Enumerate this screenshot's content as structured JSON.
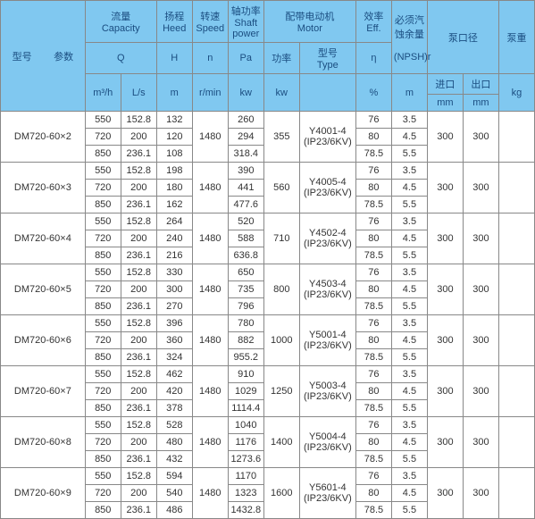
{
  "colors": {
    "header_bg": "#80c8f0",
    "header_text": "#1a4d80",
    "border": "#888888",
    "cell_bg": "#ffffff"
  },
  "header": {
    "model_params": "型号        参数",
    "capacity_cn": "流量",
    "capacity_en": "Capacity",
    "head_cn": "扬程",
    "head_en": "Heed",
    "speed_cn": "转速",
    "speed_en": "Speed",
    "shaft_cn": "轴功率",
    "shaft_en": "Shaft power",
    "motor_cn": "配带电动机",
    "motor_en": "Motor",
    "eff_cn": "效率",
    "eff_en": "Eff.",
    "npsh_cn": "必须汽蚀余量",
    "pump_dia_cn": "泵口径",
    "weight_cn": "泵重",
    "Q": "Q",
    "H": "H",
    "n": "n",
    "Pa": "Pa",
    "power_cn": "功率",
    "type_cn": "型号",
    "type_en": "Type",
    "eta": "η",
    "npshr": "(NPSH)r",
    "inlet": "进口",
    "outlet": "出口",
    "u_m3h": "m³/h",
    "u_ls": "L/s",
    "u_m": "m",
    "u_rmin": "r/min",
    "u_kw": "kw",
    "u_kw2": "kw",
    "u_pct": "%",
    "u_m2": "m",
    "u_mm": "mm",
    "u_mm2": "mm",
    "u_kg": "kg"
  },
  "rows": [
    {
      "model": "DM720-60×2",
      "q_m3h": [
        550,
        720,
        850
      ],
      "q_ls": [
        152.8,
        200,
        236.1
      ],
      "head": [
        132,
        120,
        108
      ],
      "speed": 1480,
      "shaft": [
        260,
        294,
        318.4
      ],
      "motor_kw": 355,
      "motor_type": "Y4001-4\n(IP23/6KV)",
      "eff": [
        76,
        80,
        78.5
      ],
      "npsh": [
        3.5,
        4.5,
        5.5
      ],
      "inlet": 300,
      "outlet": 300,
      "weight": ""
    },
    {
      "model": "DM720-60×3",
      "q_m3h": [
        550,
        720,
        850
      ],
      "q_ls": [
        152.8,
        200,
        236.1
      ],
      "head": [
        198,
        180,
        162
      ],
      "speed": 1480,
      "shaft": [
        390,
        441,
        477.6
      ],
      "motor_kw": 560,
      "motor_type": "Y4005-4\n(IP23/6KV)",
      "eff": [
        76,
        80,
        78.5
      ],
      "npsh": [
        3.5,
        4.5,
        5.5
      ],
      "inlet": 300,
      "outlet": 300,
      "weight": ""
    },
    {
      "model": "DM720-60×4",
      "q_m3h": [
        550,
        720,
        850
      ],
      "q_ls": [
        152.8,
        200,
        236.1
      ],
      "head": [
        264,
        240,
        216
      ],
      "speed": 1480,
      "shaft": [
        520,
        588,
        636.8
      ],
      "motor_kw": 710,
      "motor_type": "Y4502-4\n(IP23/6KV)",
      "eff": [
        76,
        80,
        78.5
      ],
      "npsh": [
        3.5,
        4.5,
        5.5
      ],
      "inlet": 300,
      "outlet": 300,
      "weight": ""
    },
    {
      "model": "DM720-60×5",
      "q_m3h": [
        550,
        720,
        850
      ],
      "q_ls": [
        152.8,
        200,
        236.1
      ],
      "head": [
        330,
        300,
        270
      ],
      "speed": 1480,
      "shaft": [
        650,
        735,
        796
      ],
      "motor_kw": 800,
      "motor_type": "Y4503-4\n(IP23/6KV)",
      "eff": [
        76,
        80,
        78.5
      ],
      "npsh": [
        3.5,
        4.5,
        5.5
      ],
      "inlet": 300,
      "outlet": 300,
      "weight": ""
    },
    {
      "model": "DM720-60×6",
      "q_m3h": [
        550,
        720,
        850
      ],
      "q_ls": [
        152.8,
        200,
        236.1
      ],
      "head": [
        396,
        360,
        324
      ],
      "speed": 1480,
      "shaft": [
        780,
        882,
        955.2
      ],
      "motor_kw": 1000,
      "motor_type": "Y5001-4\n(IP23/6KV)",
      "eff": [
        76,
        80,
        78.5
      ],
      "npsh": [
        3.5,
        4.5,
        5.5
      ],
      "inlet": 300,
      "outlet": 300,
      "weight": ""
    },
    {
      "model": "DM720-60×7",
      "q_m3h": [
        550,
        720,
        850
      ],
      "q_ls": [
        152.8,
        200,
        236.1
      ],
      "head": [
        462,
        420,
        378
      ],
      "speed": 1480,
      "shaft": [
        910,
        1029,
        1114.4
      ],
      "motor_kw": 1250,
      "motor_type": "Y5003-4\n(IP23/6KV)",
      "eff": [
        76,
        80,
        78.5
      ],
      "npsh": [
        3.5,
        4.5,
        5.5
      ],
      "inlet": 300,
      "outlet": 300,
      "weight": ""
    },
    {
      "model": "DM720-60×8",
      "q_m3h": [
        550,
        720,
        850
      ],
      "q_ls": [
        152.8,
        200,
        236.1
      ],
      "head": [
        528,
        480,
        432
      ],
      "speed": 1480,
      "shaft": [
        1040,
        1176,
        1273.6
      ],
      "motor_kw": 1400,
      "motor_type": "Y5004-4\n(IP23/6KV)",
      "eff": [
        76,
        80,
        78.5
      ],
      "npsh": [
        3.5,
        4.5,
        5.5
      ],
      "inlet": 300,
      "outlet": 300,
      "weight": ""
    },
    {
      "model": "DM720-60×9",
      "q_m3h": [
        550,
        720,
        850
      ],
      "q_ls": [
        152.8,
        200,
        236.1
      ],
      "head": [
        594,
        540,
        486
      ],
      "speed": 1480,
      "shaft": [
        1170,
        1323,
        1432.8
      ],
      "motor_kw": 1600,
      "motor_type": "Y5601-4\n(IP23/6KV)",
      "eff": [
        76,
        80,
        78.5
      ],
      "npsh": [
        3.5,
        4.5,
        5.5
      ],
      "inlet": 300,
      "outlet": 300,
      "weight": ""
    }
  ]
}
